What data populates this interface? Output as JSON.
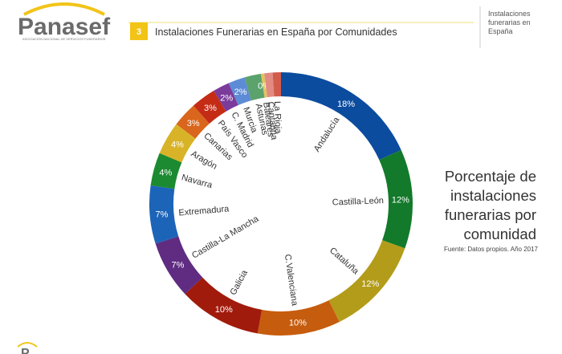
{
  "header": {
    "logo": "Panasef",
    "logo_subtitle": "ASOCIACIÓN NACIONAL DE SERVICIOS FUNERARIOS",
    "number": "3",
    "title": "Instalaciones Funerarias en España por Comunidades"
  },
  "sidebar_label": "Instalaciones funerarias en España",
  "chart_data": {
    "type": "donut",
    "title": "Porcentaje de instalaciones funerarias por comunidad",
    "source": "Fuente: Datos propios. Año 2017",
    "categories": [
      "Andalucía",
      "Castilla-León",
      "Cataluña",
      "C.Valenciana",
      "Galicia",
      "Castilla-La Mancha",
      "Extremadura",
      "Navarra",
      "Aragón",
      "Canarias",
      "País Vasco",
      "C. Madrid",
      "Murcia",
      "Asturias",
      "Baleares",
      "Cantabria",
      "La Rioja"
    ],
    "values": [
      18,
      12,
      12,
      10,
      10,
      7,
      7,
      4,
      4,
      3,
      3,
      2,
      2,
      2,
      0.4,
      1,
      1
    ],
    "value_labels": [
      "18%",
      "12%",
      "12%",
      "10%",
      "10%",
      "7%",
      "7%",
      "4%",
      "4%",
      "3%",
      "3%",
      "2%",
      "2%",
      null,
      "0%",
      null,
      null
    ],
    "colors": [
      "#0b4c9f",
      "#127a2a",
      "#b39c1a",
      "#c65c0e",
      "#a11b0c",
      "#5f2c82",
      "#1c64b8",
      "#1b8a30",
      "#d9b327",
      "#d9661c",
      "#c42c16",
      "#7b3b9b",
      "#5d8bd6",
      "#5ba26c",
      "#e2c262",
      "#e28b82",
      "#d25b4b"
    ]
  }
}
